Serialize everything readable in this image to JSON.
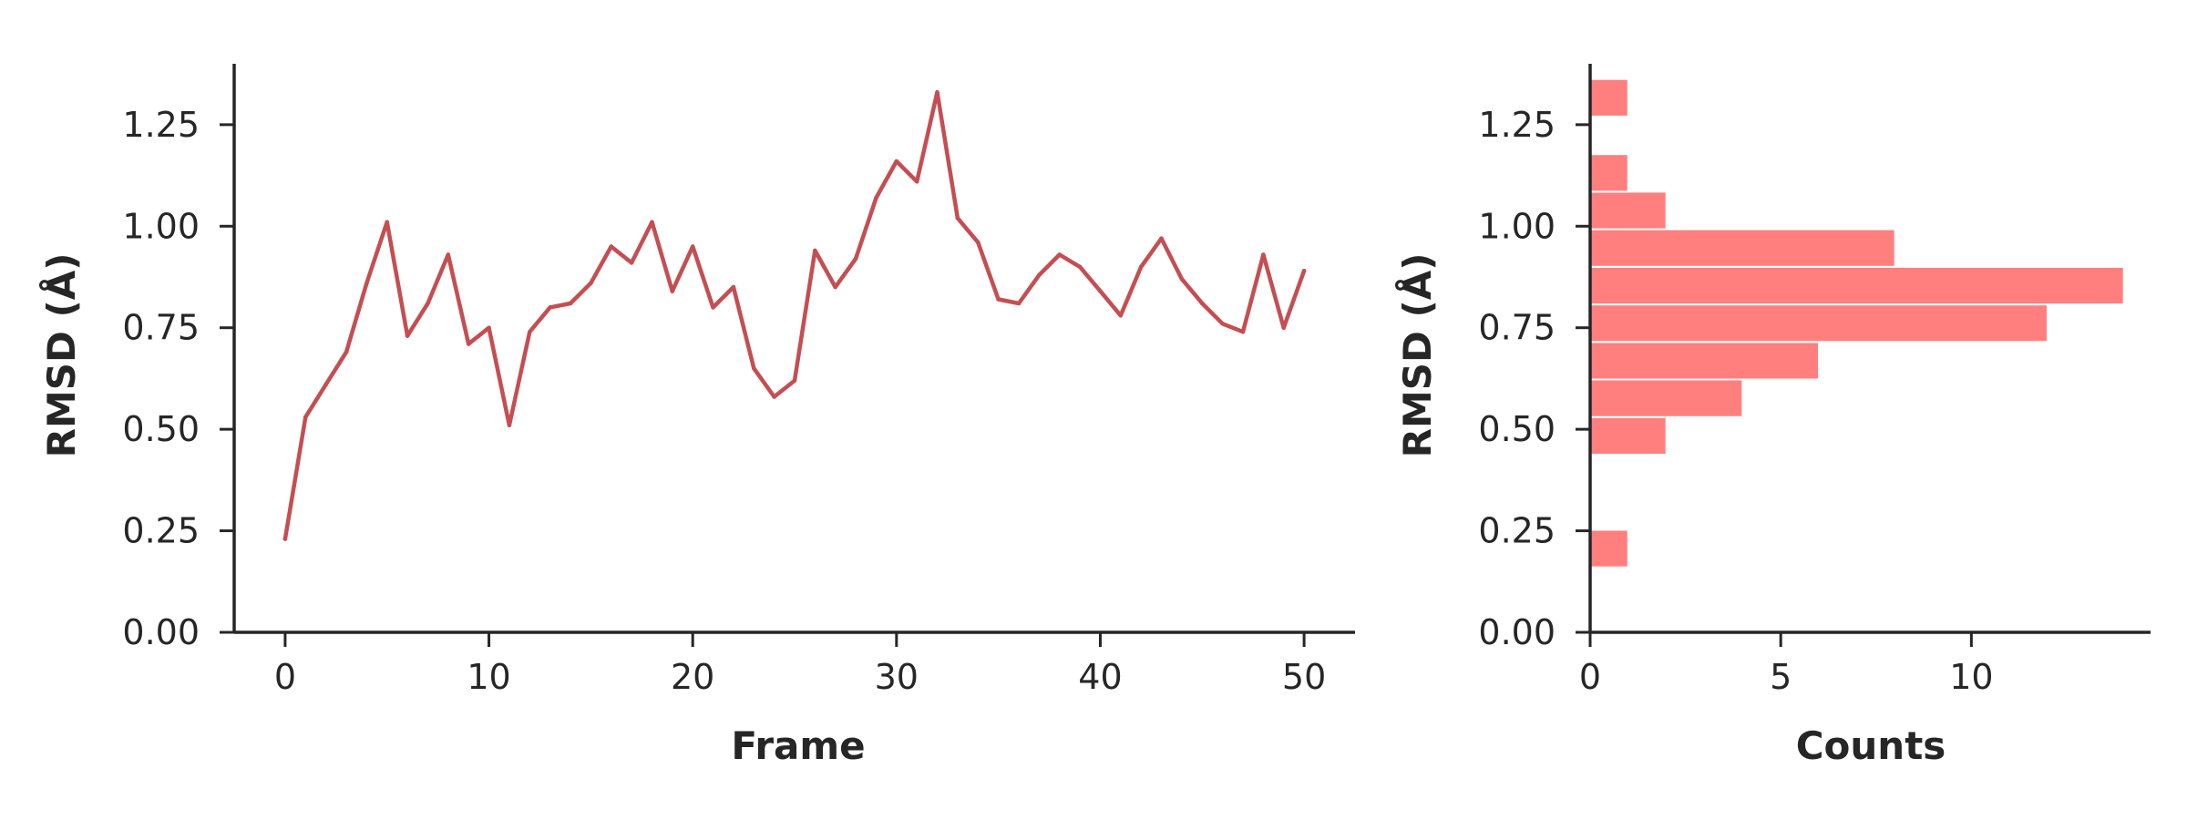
{
  "chart_data": [
    {
      "type": "line",
      "xlabel": "Frame",
      "ylabel": "RMSD (Å)",
      "xlim": [
        -2.5,
        52.5
      ],
      "ylim": [
        0,
        1.4
      ],
      "xticks": [
        0,
        10,
        20,
        30,
        40,
        50
      ],
      "xtick_labels": [
        "0",
        "10",
        "20",
        "30",
        "40",
        "50"
      ],
      "yticks": [
        0,
        0.25,
        0.5,
        0.75,
        1.0,
        1.25
      ],
      "ytick_labels": [
        "0.00",
        "0.25",
        "0.50",
        "0.75",
        "1.00",
        "1.25"
      ],
      "grid": false,
      "color": "#c44e52",
      "x": [
        0,
        1,
        2,
        3,
        4,
        5,
        6,
        7,
        8,
        9,
        10,
        11,
        12,
        13,
        14,
        15,
        16,
        17,
        18,
        19,
        20,
        21,
        22,
        23,
        24,
        25,
        26,
        27,
        28,
        29,
        30,
        31,
        32,
        33,
        34,
        35,
        36,
        37,
        38,
        39,
        40,
        41,
        42,
        43,
        44,
        45,
        46,
        47,
        48,
        49,
        50
      ],
      "y": [
        0.23,
        0.53,
        0.61,
        0.69,
        0.86,
        1.01,
        0.73,
        0.81,
        0.93,
        0.71,
        0.75,
        0.51,
        0.74,
        0.8,
        0.81,
        0.86,
        0.95,
        0.91,
        1.01,
        0.84,
        0.95,
        0.8,
        0.85,
        0.65,
        0.58,
        0.62,
        0.94,
        0.85,
        0.92,
        1.07,
        1.16,
        1.11,
        1.33,
        1.02,
        0.96,
        0.82,
        0.81,
        0.88,
        0.93,
        0.9,
        0.84,
        0.78,
        0.9,
        0.97,
        0.87,
        0.81,
        0.76,
        0.74,
        0.93,
        0.75,
        0.89
      ]
    },
    {
      "type": "bar",
      "orientation": "horizontal",
      "xlabel": "Counts",
      "ylabel": "RMSD (Å)",
      "xlim": [
        0,
        14.7
      ],
      "ylim": [
        0,
        1.4
      ],
      "xticks": [
        0,
        5,
        10
      ],
      "xtick_labels": [
        "0",
        "5",
        "10"
      ],
      "yticks": [
        0,
        0.25,
        0.5,
        0.75,
        1.0,
        1.25
      ],
      "ytick_labels": [
        "0.00",
        "0.25",
        "0.50",
        "0.75",
        "1.00",
        "1.25"
      ],
      "grid": false,
      "color": "#ff7f7f",
      "bin_edges": [
        0.16,
        0.2525,
        0.345,
        0.4375,
        0.53,
        0.6225,
        0.715,
        0.8075,
        0.9,
        0.9925,
        1.085,
        1.1775,
        1.27,
        1.3625
      ],
      "counts": [
        1,
        0,
        0,
        2,
        4,
        6,
        12,
        14,
        8,
        2,
        1,
        0,
        1
      ]
    }
  ]
}
